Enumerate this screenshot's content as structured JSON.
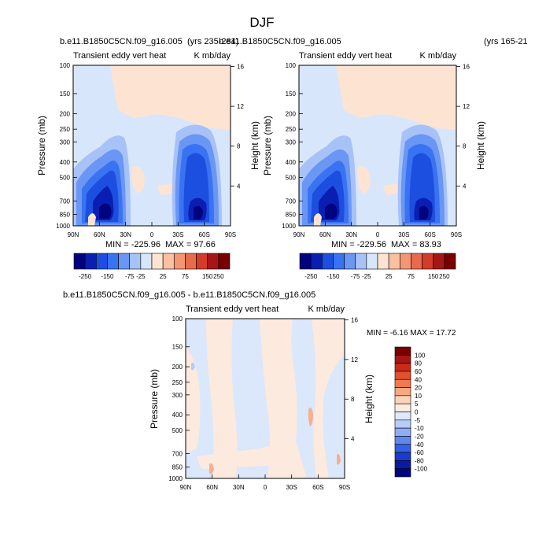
{
  "figure": {
    "title": "DJF"
  },
  "chart_data": [
    {
      "id": "panel-1",
      "type": "heatmap",
      "case_label": "b.e11.B1850C5CN.f09_g16.005",
      "years_label": "(yrs 235-284)",
      "left_title": "Transient eddy vert heat",
      "right_title": "K mb/day",
      "ylabel": "Pressure (mb)",
      "ylabel_right": "Height (km)",
      "pressure_ticks": [
        "100",
        "150",
        "200",
        "250",
        "300",
        "400",
        "500",
        "700",
        "850",
        "1000"
      ],
      "height_ticks": [
        "16",
        "12",
        "8",
        "4"
      ],
      "lat_ticks": [
        "90N",
        "60N",
        "30N",
        "0",
        "30S",
        "60S",
        "90S"
      ],
      "min_label": "MIN = -225.96",
      "max_label": "MAX = 97.66",
      "stats": {
        "min": -225.96,
        "max": 97.66
      },
      "colorbar_labels": [
        "-250",
        "-150",
        "-75",
        "-25",
        "25",
        "75",
        "150",
        "250"
      ],
      "levels": [
        -250,
        -200,
        -150,
        -100,
        -75,
        -50,
        -25,
        0,
        25,
        50,
        75,
        100,
        150,
        200,
        250
      ],
      "zero_line": false
    },
    {
      "id": "panel-2",
      "type": "heatmap",
      "case_label": "b.e11.B1850C5CN.f09_g16.005",
      "years_label": "(yrs 165-21",
      "left_title": "Transient eddy vert heat",
      "right_title": "K mb/day",
      "ylabel": "Pressure (mb)",
      "ylabel_right": "Height (km)",
      "pressure_ticks": [
        "100",
        "150",
        "200",
        "250",
        "300",
        "400",
        "500",
        "700",
        "850",
        "1000"
      ],
      "height_ticks": [
        "16",
        "12",
        "8",
        "4"
      ],
      "lat_ticks": [
        "90N",
        "60N",
        "30N",
        "0",
        "30S",
        "60S",
        "90S"
      ],
      "min_label": "MIN = -229.56",
      "max_label": "MAX = 83.93",
      "stats": {
        "min": -229.56,
        "max": 83.93
      },
      "colorbar_labels": [
        "-250",
        "-150",
        "-75",
        "-25",
        "25",
        "75",
        "150",
        "250"
      ],
      "levels": [
        -250,
        -200,
        -150,
        -100,
        -75,
        -50,
        -25,
        0,
        25,
        50,
        75,
        100,
        150,
        200,
        250
      ],
      "zero_line": false
    },
    {
      "id": "panel-diff",
      "type": "heatmap",
      "case_label": "b.e11.B1850C5CN.f09_g16.005 - b.e11.B1850C5CN.f09_g16.005",
      "left_title": "Transient eddy vert heat",
      "right_title": "K mb/day",
      "ylabel": "Pressure (mb)",
      "ylabel_right": "Height (km)",
      "pressure_ticks": [
        "100",
        "150",
        "200",
        "250",
        "300",
        "400",
        "500",
        "700",
        "850",
        "1000"
      ],
      "height_ticks": [
        "16",
        "12",
        "8",
        "4"
      ],
      "lat_ticks": [
        "90N",
        "60N",
        "30N",
        "0",
        "30S",
        "60S",
        "90S"
      ],
      "minmax_label": "MIN = -6.16  MAX = 17.72",
      "stats": {
        "min": -6.16,
        "max": 17.72
      },
      "colorbar_labels": [
        "100",
        "80",
        "60",
        "40",
        "20",
        "10",
        "5",
        "0",
        "-5",
        "-10",
        "-20",
        "-40",
        "-60",
        "-80",
        "-100"
      ],
      "levels": [
        100,
        80,
        60,
        40,
        20,
        10,
        5,
        0,
        -5,
        -10,
        -20,
        -40,
        -60,
        -80,
        -100
      ]
    }
  ],
  "colors": {
    "top_colorbar": [
      "#02037e",
      "#0a1fb2",
      "#1c4fe0",
      "#3a73f2",
      "#6a96f4",
      "#a7c2f7",
      "#d8e6fb",
      "#fde4d2",
      "#f9c0a1",
      "#f39674",
      "#ea6a4c",
      "#d43c2a",
      "#a51616",
      "#780000"
    ],
    "diff_colorbar": [
      "#780000",
      "#a51616",
      "#cc2a18",
      "#e0512c",
      "#f07a4f",
      "#f7a880",
      "#fcd3b8",
      "#fdebe0",
      "#dfe9fb",
      "#b7cdf7",
      "#8fadf2",
      "#5f87ee",
      "#3360e6",
      "#1a3ccc",
      "#0b1aa5",
      "#02037e"
    ],
    "contour": {
      "very_light_blue": "#d8e6fb",
      "light_blue": "#a7c2f7",
      "mid_blue": "#6a96f4",
      "blue": "#3a73f2",
      "strong_blue": "#1c4fe0",
      "deep_blue": "#0a1fb2",
      "navy": "#02037e",
      "peach": "#fde4d2",
      "diff_peach": "#fdeade",
      "diff_blue": "#dbe7fb",
      "diff_salmon": "#f5b090"
    }
  }
}
